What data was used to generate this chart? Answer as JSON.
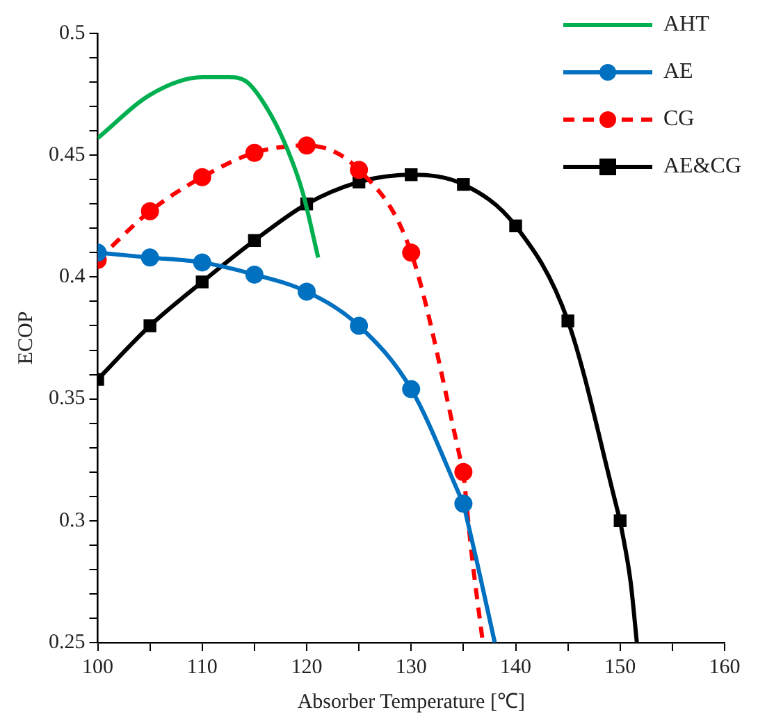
{
  "chart_data": {
    "type": "line",
    "xlabel": "Absorber Temperature [℃]",
    "ylabel": "ECOP",
    "xlim": [
      100,
      160
    ],
    "ylim": [
      0.25,
      0.5
    ],
    "xticks": [
      100,
      {
        "value": 105,
        "label": null
      },
      110,
      {
        "value": 115,
        "label": null
      },
      120,
      {
        "value": 125,
        "label": null
      },
      130,
      {
        "value": 135,
        "label": null
      },
      140,
      {
        "value": 145,
        "label": null
      },
      150,
      {
        "value": 155,
        "label": null
      },
      160
    ],
    "yticks": [
      0.25,
      {
        "value": 0.26,
        "label": null
      },
      {
        "value": 0.27,
        "label": null
      },
      {
        "value": 0.28,
        "label": null
      },
      {
        "value": 0.29,
        "label": null
      },
      0.3,
      {
        "value": 0.31,
        "label": null
      },
      {
        "value": 0.32,
        "label": null
      },
      {
        "value": 0.33,
        "label": null
      },
      {
        "value": 0.34,
        "label": null
      },
      0.35,
      {
        "value": 0.36,
        "label": null
      },
      {
        "value": 0.37,
        "label": null
      },
      {
        "value": 0.38,
        "label": null
      },
      {
        "value": 0.39,
        "label": null
      },
      0.4,
      {
        "value": 0.41,
        "label": null
      },
      {
        "value": 0.42,
        "label": null
      },
      {
        "value": 0.43,
        "label": null
      },
      {
        "value": 0.44,
        "label": null
      },
      0.45,
      {
        "value": 0.46,
        "label": null
      },
      {
        "value": 0.47,
        "label": null
      },
      {
        "value": 0.48,
        "label": null
      },
      {
        "value": 0.49,
        "label": null
      },
      0.5
    ],
    "grid": false,
    "legend": "top right",
    "series": [
      {
        "name": "AHT",
        "color": "#00b050",
        "marker": "none",
        "line_style": "solid",
        "x": [
          100,
          105.1,
          110,
          112.6,
          114.3,
          116.1,
          117.9,
          119.6,
          121.1
        ],
        "values": [
          0.457,
          0.475,
          0.482,
          0.482,
          0.48,
          0.47,
          0.455,
          0.435,
          0.408
        ]
      },
      {
        "name": "AE",
        "color": "#0070c0",
        "marker": "circle",
        "line_style": "solid",
        "x": [
          100,
          105,
          110,
          115,
          120,
          125,
          130,
          135
        ],
        "values": [
          0.41,
          0.408,
          0.406,
          0.401,
          0.394,
          0.38,
          0.354,
          0.307
        ]
      },
      {
        "color": "#0070c0",
        "marker": "none",
        "line_style": "solid",
        "x": [
          135,
          136.3,
          138
        ],
        "values": [
          0.307,
          0.283,
          0.25
        ]
      },
      {
        "name": "CG",
        "color": "#ff0000",
        "marker": "circle",
        "line_style": "dashed",
        "x": [
          100,
          105,
          110,
          115,
          120,
          125,
          130,
          135
        ],
        "values": [
          0.407,
          0.427,
          0.441,
          0.451,
          0.454,
          0.444,
          0.41,
          0.32
        ]
      },
      {
        "color": "#ff0000",
        "marker": "none",
        "line_style": "dashed",
        "x": [
          135,
          135.8,
          136.8
        ],
        "values": [
          0.32,
          0.286,
          0.252
        ]
      },
      {
        "name": "AE&CG",
        "color": "#000000",
        "marker": "square",
        "line_style": "solid",
        "x": [
          100,
          105,
          110,
          115,
          120,
          125,
          130,
          135,
          140,
          145,
          150
        ],
        "values": [
          0.358,
          0.38,
          0.398,
          0.415,
          0.43,
          0.439,
          0.442,
          0.438,
          0.421,
          0.382,
          0.3
        ]
      },
      {
        "color": "#000000",
        "marker": "none",
        "line_style": "solid",
        "x": [
          150,
          151,
          151.6
        ],
        "values": [
          0.3,
          0.275,
          0.25
        ]
      }
    ]
  }
}
